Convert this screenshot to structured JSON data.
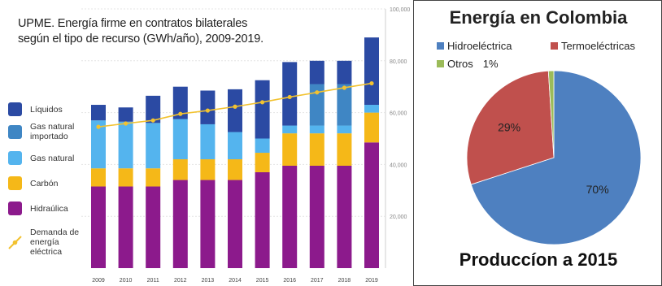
{
  "left_chart": {
    "title_line1": "UPME.  Energía firme en contratos bilaterales",
    "title_line2": "según el tipo de recurso (GWh/año), 2009-2019.",
    "legend": [
      {
        "label": "Líquidos",
        "color": "#2b4aa3"
      },
      {
        "label": "Gas natural importado",
        "color": "#3f86c4"
      },
      {
        "label": "Gas natural",
        "color": "#54b4ee"
      },
      {
        "label": "Carbón",
        "color": "#f5b818"
      },
      {
        "label": "Hidraúlica",
        "color": "#8c1a8c"
      },
      {
        "label": "Demanda de energía eléctrica",
        "color": "#f2c230"
      }
    ],
    "chart_data": {
      "type": "bar",
      "stacked": true,
      "categories": [
        "2009",
        "2010",
        "2011",
        "2012",
        "2013",
        "2014",
        "2015",
        "2016",
        "2017",
        "2018",
        "2019"
      ],
      "series": [
        {
          "name": "Hidraúlica",
          "values": [
            31500,
            31500,
            31500,
            34000,
            34000,
            34000,
            37000,
            39500,
            39500,
            39500,
            48500
          ]
        },
        {
          "name": "Carbón",
          "values": [
            7000,
            7000,
            7000,
            8000,
            8000,
            8000,
            7500,
            12500,
            12500,
            12500,
            11500
          ]
        },
        {
          "name": "Gas natural",
          "values": [
            18500,
            18000,
            17500,
            15500,
            13500,
            10500,
            5500,
            3000,
            3000,
            3000,
            3000
          ]
        },
        {
          "name": "Gas natural importado",
          "values": [
            0,
            0,
            0,
            0,
            0,
            0,
            0,
            0,
            16000,
            16000,
            0
          ]
        },
        {
          "name": "Líquidos",
          "values": [
            6000,
            5500,
            10500,
            12500,
            13000,
            16500,
            22500,
            24500,
            9000,
            9000,
            26000
          ]
        }
      ],
      "line": {
        "name": "Demanda de energía eléctrica",
        "values": [
          54500,
          55800,
          57000,
          59500,
          60800,
          62300,
          64000,
          66000,
          67800,
          69600,
          71300
        ]
      },
      "yticks": [
        "100,000",
        "80,000",
        "60,000",
        "40,000",
        "20,000"
      ],
      "ylim": [
        0,
        100000
      ],
      "grid": true,
      "legend_position": "left"
    }
  },
  "right_chart": {
    "chart_data": {
      "type": "pie",
      "title": "Energía en Colombia",
      "slices": [
        {
          "name": "Hidroeléctrica",
          "value": 70,
          "label": "70%",
          "color": "#4e80c0"
        },
        {
          "name": "Termoeléctricas",
          "value": 29,
          "label": "29%",
          "color": "#c0504d"
        },
        {
          "name": "Otros",
          "value": 1,
          "label": "1%",
          "color": "#9bbb59"
        }
      ],
      "legend_position": "top"
    },
    "caption": "Produccíon a 2015"
  }
}
